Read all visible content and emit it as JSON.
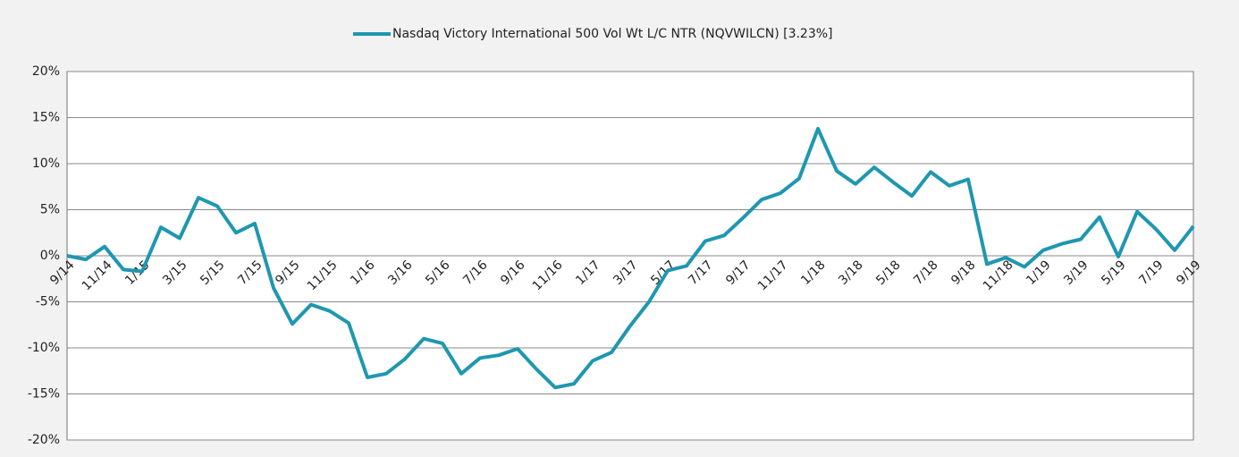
{
  "chart_data": {
    "type": "line",
    "categories": [
      "9/14",
      null,
      "11/14",
      null,
      "1/15",
      null,
      "3/15",
      null,
      "5/15",
      null,
      "7/15",
      null,
      "9/15",
      null,
      "11/15",
      null,
      "1/16",
      null,
      "3/16",
      null,
      "5/16",
      null,
      "7/16",
      null,
      "9/16",
      null,
      "11/16",
      null,
      "1/17",
      null,
      "3/17",
      null,
      "5/17",
      null,
      "7/17",
      null,
      "9/17",
      null,
      "11/17",
      null,
      "1/18",
      null,
      "3/18",
      null,
      "5/18",
      null,
      "7/18",
      null,
      "9/18",
      null,
      "11/18",
      null,
      "1/19",
      null,
      "3/19",
      null,
      "5/19",
      null,
      "7/19",
      null,
      "9/19"
    ],
    "series": [
      {
        "name": "Nasdaq Victory International 500 Vol Wt L/C NTR (NQVWILCN) [3.23%]",
        "color": "#1f97b0",
        "values": [
          0,
          -0.4,
          1.0,
          -1.5,
          -1.7,
          3.1,
          1.9,
          6.3,
          5.4,
          2.5,
          3.5,
          -3.5,
          -7.4,
          -5.3,
          -6.0,
          -7.3,
          -13.2,
          -12.8,
          -11.2,
          -9.0,
          -9.5,
          -12.8,
          -11.1,
          -10.8,
          -10.1,
          -12.3,
          -14.3,
          -13.9,
          -11.4,
          -10.5,
          -7.6,
          -5.0,
          -1.6,
          -1.1,
          1.6,
          2.2,
          4.1,
          6.1,
          6.8,
          8.4,
          13.8,
          9.2,
          7.8,
          9.6,
          8.0,
          6.5,
          9.1,
          7.6,
          8.3,
          -0.9,
          -0.2,
          -1.2,
          0.6,
          1.3,
          1.8,
          4.2,
          -0.1,
          4.8,
          2.9,
          0.6,
          3.2
        ]
      }
    ],
    "ylim": [
      -20,
      20
    ],
    "yticks": [
      {
        "value": -20,
        "label": "-20%"
      },
      {
        "value": -15,
        "label": "-15%"
      },
      {
        "value": -10,
        "label": "-10%"
      },
      {
        "value": -5,
        "label": "-5%"
      },
      {
        "value": 0,
        "label": "0%"
      },
      {
        "value": 5,
        "label": "5%"
      },
      {
        "value": 10,
        "label": "10%"
      },
      {
        "value": 15,
        "label": "15%"
      },
      {
        "value": 20,
        "label": "20%"
      }
    ],
    "grid": true,
    "legend": "top"
  }
}
